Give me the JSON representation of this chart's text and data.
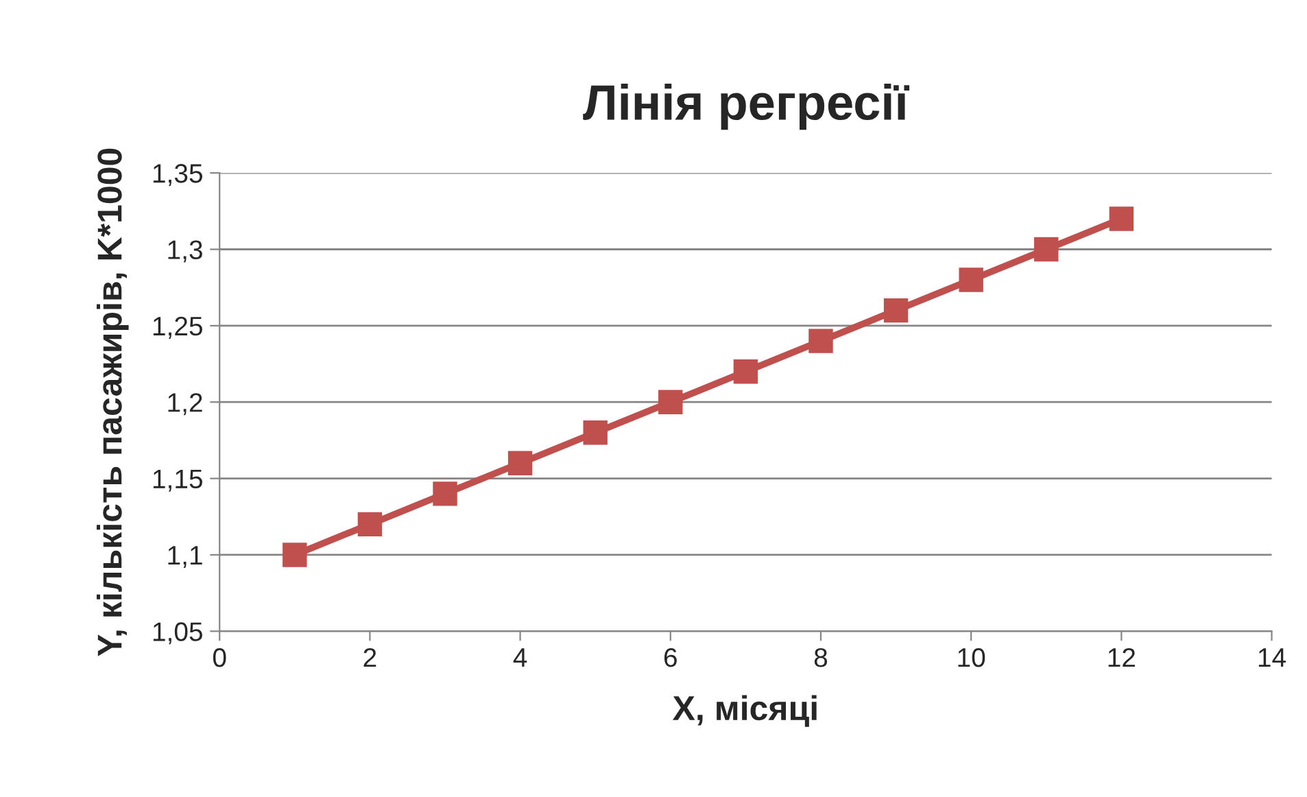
{
  "chart_data": {
    "type": "line",
    "title": "Лінія регресії",
    "xlabel": "X, місяці",
    "ylabel": "Y, кількість пасажирів, K*1000",
    "x": [
      1,
      2,
      3,
      4,
      5,
      6,
      7,
      8,
      9,
      10,
      11,
      12
    ],
    "series": [
      {
        "color": "#c0504d",
        "values": [
          1.1,
          1.12,
          1.14,
          1.16,
          1.18,
          1.2,
          1.22,
          1.24,
          1.26,
          1.28,
          1.3,
          1.32
        ]
      }
    ],
    "xlim": [
      0,
      14
    ],
    "xticks": [
      0,
      2,
      4,
      6,
      8,
      10,
      12,
      14
    ],
    "ylim": [
      1.05,
      1.35
    ],
    "yticks": [
      {
        "value": 1.05,
        "label": "1,05"
      },
      {
        "value": 1.1,
        "label": "1,1"
      },
      {
        "value": 1.15,
        "label": "1,15"
      },
      {
        "value": 1.2,
        "label": "1,2"
      },
      {
        "value": 1.25,
        "label": "1,25"
      },
      {
        "value": 1.3,
        "label": "1,3"
      },
      {
        "value": 1.35,
        "label": "1,35"
      }
    ],
    "grid": "y",
    "marker": "square",
    "line_style": "solid"
  }
}
